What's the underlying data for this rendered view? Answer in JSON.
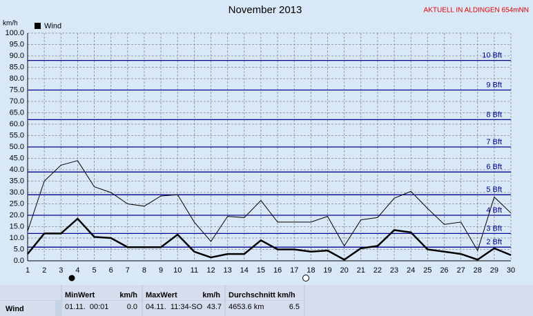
{
  "chart_data": {
    "type": "line",
    "title": "November 2013",
    "note": "AKTUELL IN ALDINGEN 654mNN",
    "ylabel": "km/h",
    "x": [
      1,
      2,
      3,
      4,
      5,
      6,
      7,
      8,
      9,
      10,
      11,
      12,
      13,
      14,
      15,
      16,
      17,
      18,
      19,
      20,
      21,
      22,
      23,
      24,
      25,
      26,
      27,
      28,
      29,
      30
    ],
    "xlim": [
      1,
      30
    ],
    "xticks": [
      1,
      2,
      3,
      4,
      5,
      6,
      7,
      8,
      9,
      10,
      11,
      12,
      13,
      14,
      15,
      16,
      17,
      18,
      19,
      20,
      21,
      22,
      23,
      24,
      25,
      26,
      27,
      28,
      29,
      30
    ],
    "ylim": [
      0,
      100
    ],
    "yticks": [
      {
        "value": 0,
        "label": "0.0"
      },
      {
        "value": 5,
        "label": "5.0"
      },
      {
        "value": 10,
        "label": "10.0"
      },
      {
        "value": 15,
        "label": "15.0"
      },
      {
        "value": 20,
        "label": "20.0"
      },
      {
        "value": 25,
        "label": "25.0"
      },
      {
        "value": 30,
        "label": "30.0"
      },
      {
        "value": 35,
        "label": "35.0"
      },
      {
        "value": 40,
        "label": "40.0"
      },
      {
        "value": 45,
        "label": "45.0"
      },
      {
        "value": 50,
        "label": "50.0"
      },
      {
        "value": 55,
        "label": "55.0"
      },
      {
        "value": 60,
        "label": "60.0"
      },
      {
        "value": 65,
        "label": "65.0"
      },
      {
        "value": 70,
        "label": "70.0"
      },
      {
        "value": 75,
        "label": "75.0"
      },
      {
        "value": 80,
        "label": "80.0"
      },
      {
        "value": 85,
        "label": "85.0"
      },
      {
        "value": 90,
        "label": "90.0"
      },
      {
        "value": 95,
        "label": "95.0"
      },
      {
        "value": 100,
        "label": "100.0"
      }
    ],
    "grid": true,
    "reference_lines": [
      {
        "value": 6,
        "label": "2 Bft"
      },
      {
        "value": 12,
        "label": "3 Bft"
      },
      {
        "value": 20,
        "label": "4 Bft"
      },
      {
        "value": 29,
        "label": "5 Bft"
      },
      {
        "value": 39,
        "label": "6 Bft"
      },
      {
        "value": 50,
        "label": "7 Bft"
      },
      {
        "value": 62,
        "label": "8 Bft"
      },
      {
        "value": 75,
        "label": "9 Bft"
      },
      {
        "value": 88,
        "label": "10 Bft"
      }
    ],
    "reference_color": "#00008b",
    "series": [
      {
        "name": "Wind",
        "color": "#000000",
        "width": 2.5,
        "values": [
          3,
          12,
          12,
          18.5,
          10.5,
          10,
          6,
          6,
          6,
          11.5,
          4,
          1.5,
          3,
          3,
          9,
          5,
          5,
          4,
          4.5,
          0.5,
          5.5,
          6.5,
          13.5,
          12.5,
          5,
          4,
          3,
          0.5,
          5.5,
          2.5
        ]
      },
      {
        "color": "#000000",
        "width": 1,
        "values": [
          13,
          35,
          42,
          44,
          32.5,
          30,
          25,
          24,
          28.5,
          29,
          17,
          8.5,
          19.5,
          19,
          26.5,
          17,
          17,
          17,
          19.5,
          6.5,
          18,
          19,
          27.5,
          30.5,
          23,
          16,
          17,
          4.5,
          28,
          21
        ]
      }
    ]
  },
  "stats": {
    "header": [
      "MinWert",
      "km/h",
      "MaxWert",
      "km/h",
      "Durchschnitt km/h"
    ],
    "rows": [
      [
        "Wind",
        "01.11.  00:01",
        "0.0",
        "04.11.  11:34-SO",
        "43.7",
        "4653.6 km",
        "6.5"
      ]
    ]
  }
}
